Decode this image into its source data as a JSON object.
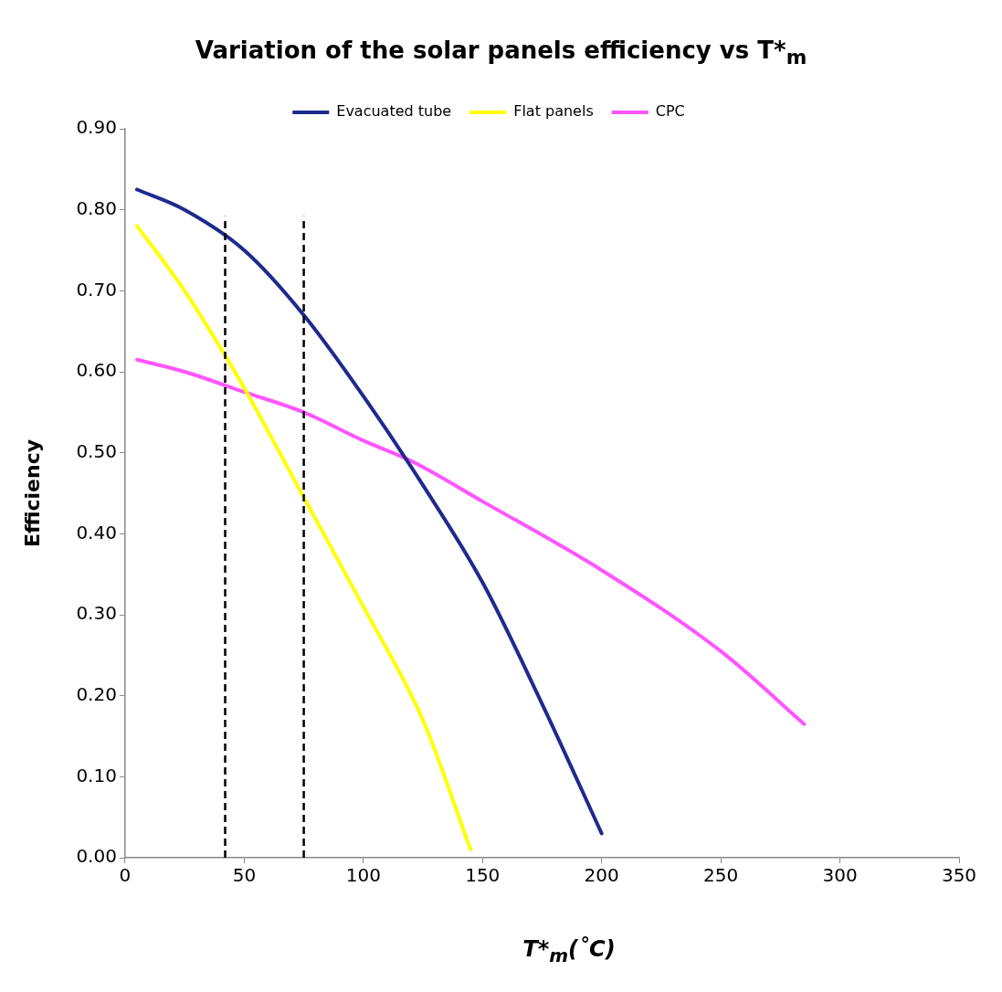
{
  "chart_data": {
    "type": "line",
    "title": "Variation of the solar panels efficiency vs T*$_{m}$",
    "xlabel": "T*$_{m}$(˚C)",
    "ylabel": "Efficiency",
    "series": [
      {
        "name": "Evacuated tube",
        "color": "#1f2a8c",
        "x": [
          5,
          25,
          50,
          75,
          100,
          125,
          150,
          175,
          200
        ],
        "values": [
          0.825,
          0.8,
          0.75,
          0.67,
          0.57,
          0.46,
          0.34,
          0.19,
          0.03
        ]
      },
      {
        "name": "Flat panels",
        "color": "#ffff00",
        "x": [
          5,
          25,
          42,
          50,
          75,
          100,
          125,
          145
        ],
        "values": [
          0.78,
          0.7,
          0.62,
          0.58,
          0.445,
          0.31,
          0.17,
          0.01
        ]
      },
      {
        "name": "CPC",
        "color": "#ff55ff",
        "x": [
          5,
          25,
          50,
          75,
          100,
          120,
          150,
          200,
          250,
          285
        ],
        "values": [
          0.615,
          0.6,
          0.575,
          0.55,
          0.515,
          0.49,
          0.44,
          0.355,
          0.255,
          0.165
        ]
      }
    ],
    "xlim": [
      0,
      350
    ],
    "xticks": [
      0,
      50,
      100,
      150,
      200,
      250,
      300,
      350
    ],
    "ylim": [
      0,
      0.9
    ],
    "yticks": [
      {
        "value": 0,
        "label": "0.00"
      },
      {
        "value": 0.1,
        "label": "0.10"
      },
      {
        "value": 0.2,
        "label": "0.20"
      },
      {
        "value": 0.3,
        "label": "0.30"
      },
      {
        "value": 0.4,
        "label": "0.40"
      },
      {
        "value": 0.5,
        "label": "0.50"
      },
      {
        "value": 0.6,
        "label": "0.60"
      },
      {
        "value": 0.7,
        "label": "0.70"
      },
      {
        "value": 0.8,
        "label": "0.80"
      },
      {
        "value": 0.9,
        "label": "0.90"
      }
    ],
    "ref_lines": [
      {
        "axis": "x",
        "value": 42,
        "color": "#000000",
        "line_style": "dashed"
      },
      {
        "axis": "x",
        "value": 75,
        "color": "#000000",
        "line_style": "dashed"
      }
    ],
    "grid": false,
    "legend": "top",
    "marker": "none",
    "line_style": "solid"
  }
}
